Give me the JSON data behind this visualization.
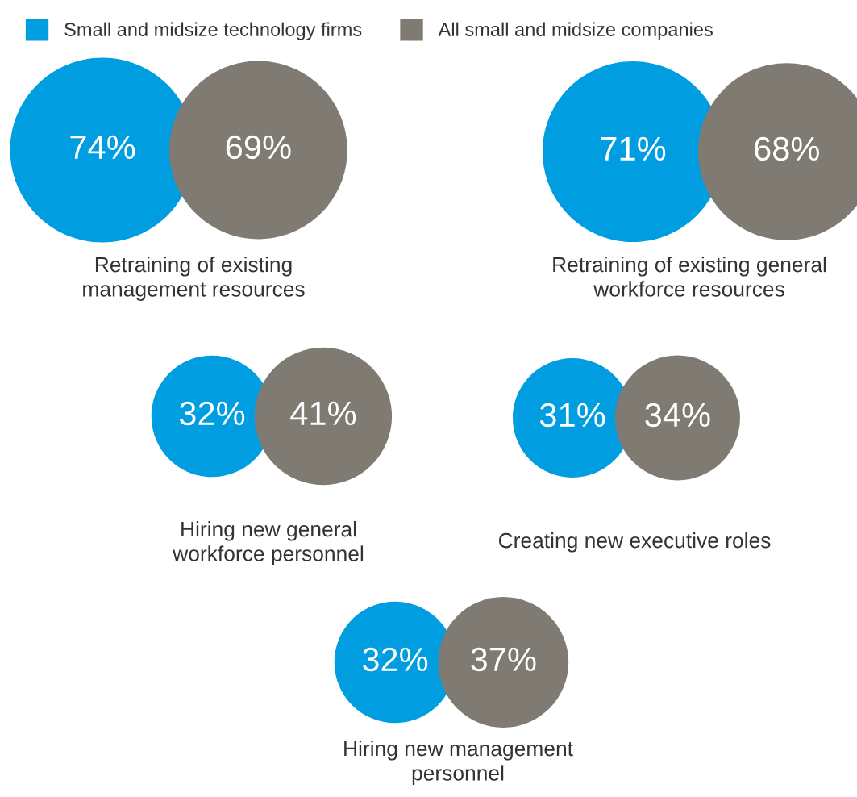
{
  "chart_data": {
    "type": "other",
    "categories": [
      "Retraining of existing\nmanagement resources",
      "Retraining of existing general\nworkforce resources",
      "Hiring new general\nworkforce personnel",
      "Creating new executive roles",
      "Hiring new management\npersonnel"
    ],
    "series": [
      {
        "name": "Small and midsize technology firms",
        "color": "#009de0",
        "values": [
          74,
          71,
          32,
          31,
          32
        ],
        "value_labels": [
          "74%",
          "71%",
          "32%",
          "31%",
          "32%"
        ]
      },
      {
        "name": "All small and midsize companies",
        "color": "#7f7a72",
        "values": [
          69,
          68,
          41,
          34,
          37
        ],
        "value_labels": [
          "69%",
          "68%",
          "41%",
          "34%",
          "37%"
        ]
      }
    ],
    "legend": "top left"
  }
}
